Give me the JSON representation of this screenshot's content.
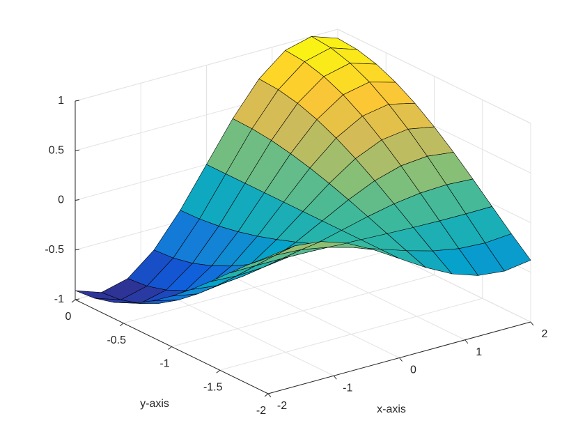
{
  "chart_data": {
    "type": "surface",
    "xlabel": "x-axis",
    "ylabel": "y-axis",
    "x": [
      -2,
      -1.6,
      -1.2,
      -0.8,
      -0.4,
      0,
      0.4,
      0.8,
      1.2,
      1.6,
      2
    ],
    "y": [
      -2,
      -1.8,
      -1.6,
      -1.4,
      -1.2,
      -1,
      -0.8,
      -0.6,
      -0.4,
      -0.2,
      0
    ],
    "z": [
      [
        0.378,
        0.416,
        0.388,
        0.299,
        0.162,
        0,
        -0.162,
        -0.299,
        -0.388,
        -0.416,
        -0.378
      ],
      [
        0.207,
        0.227,
        0.212,
        0.163,
        0.088,
        0,
        -0.088,
        -0.163,
        -0.212,
        -0.227,
        -0.207
      ],
      [
        0.027,
        0.029,
        0.027,
        0.021,
        0.011,
        0,
        -0.011,
        -0.021,
        -0.027,
        -0.029,
        -0.027
      ],
      [
        -0.155,
        -0.17,
        -0.158,
        -0.122,
        -0.066,
        0,
        0.066,
        0.122,
        0.158,
        0.17,
        0.155
      ],
      [
        -0.33,
        -0.362,
        -0.338,
        -0.26,
        -0.141,
        0,
        0.141,
        0.26,
        0.338,
        0.362,
        0.33
      ],
      [
        -0.491,
        -0.54,
        -0.504,
        -0.388,
        -0.21,
        0,
        0.21,
        0.388,
        0.504,
        0.54,
        0.491
      ],
      [
        -0.634,
        -0.696,
        -0.649,
        -0.5,
        -0.271,
        0,
        0.271,
        0.5,
        0.649,
        0.696,
        0.634
      ],
      [
        -0.75,
        -0.825,
        -0.769,
        -0.592,
        -0.321,
        0,
        0.321,
        0.592,
        0.769,
        0.825,
        0.75
      ],
      [
        -0.838,
        -0.921,
        -0.858,
        -0.661,
        -0.359,
        0,
        0.359,
        0.661,
        0.858,
        0.921,
        0.838
      ],
      [
        -0.891,
        -0.98,
        -0.913,
        -0.703,
        -0.382,
        0,
        0.382,
        0.703,
        0.913,
        0.98,
        0.891
      ],
      [
        -0.909,
        -1,
        -0.932,
        -0.717,
        -0.389,
        0,
        0.389,
        0.717,
        0.932,
        1,
        0.909
      ]
    ],
    "xlim": [
      -2,
      2
    ],
    "ylim": [
      -2,
      0
    ],
    "zlim": [
      -1,
      1
    ],
    "xticks": [
      -2,
      -1,
      0,
      1,
      2
    ],
    "yticks": [
      -2,
      -1.5,
      -1,
      -0.5,
      0
    ],
    "zticks": [
      -1,
      -0.5,
      0,
      0.5,
      1
    ],
    "grid": true,
    "colormap": [
      "#352a87",
      "#0f5cdd",
      "#1481d6",
      "#06a4ca",
      "#2eb7a4",
      "#87bf77",
      "#d1bb59",
      "#fec832",
      "#f9fb0e"
    ],
    "edge_color": "#000000"
  }
}
